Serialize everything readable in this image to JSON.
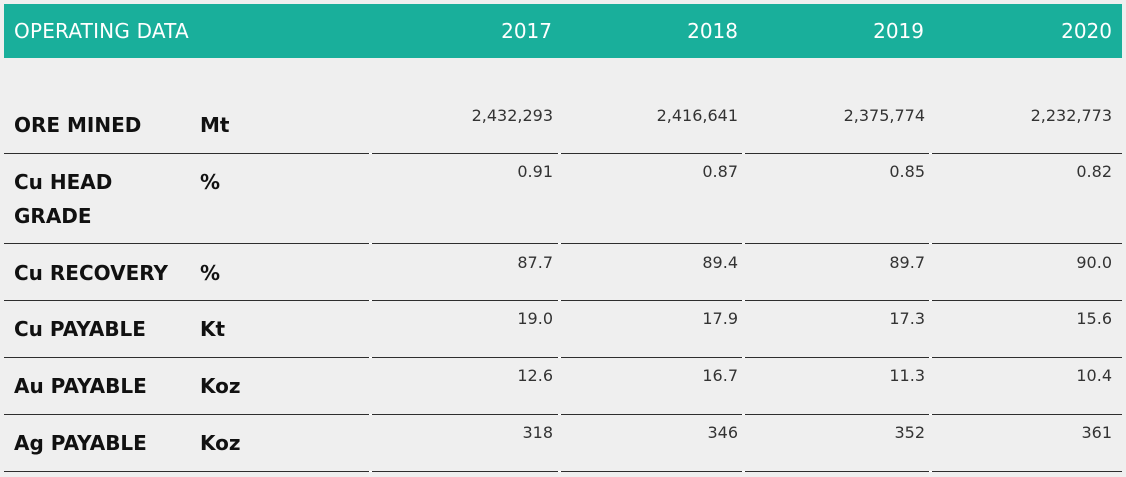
{
  "header": {
    "title": "OPERATING DATA",
    "years": [
      "2017",
      "2018",
      "2019",
      "2020"
    ],
    "background": "#19af9b"
  },
  "rows": [
    {
      "label": "ORE MINED",
      "unit": "Mt",
      "values": [
        "2,432,293",
        "2,416,641",
        "2,375,774",
        "2,232,773"
      ]
    },
    {
      "label": "Cu HEAD GRADE",
      "unit": "%",
      "values": [
        "0.91",
        "0.87",
        "0.85",
        "0.82"
      ]
    },
    {
      "label": "Cu RECOVERY",
      "unit": "%",
      "values": [
        "87.7",
        "89.4",
        "89.7",
        "90.0"
      ]
    },
    {
      "label": "Cu PAYABLE",
      "unit": "Kt",
      "values": [
        "19.0",
        "17.9",
        "17.3",
        "15.6"
      ]
    },
    {
      "label": "Au PAYABLE",
      "unit": "Koz",
      "values": [
        "12.6",
        "16.7",
        "11.3",
        "10.4"
      ]
    },
    {
      "label": "Ag PAYABLE",
      "unit": "Koz",
      "values": [
        "318",
        "346",
        "352",
        "361"
      ]
    }
  ]
}
